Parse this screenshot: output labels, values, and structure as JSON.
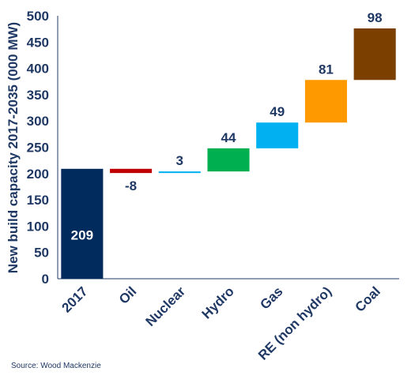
{
  "chart_data": {
    "type": "waterfall",
    "categories": [
      "2017",
      "Oil",
      "Nuclear",
      "Hydro",
      "Gas",
      "RE (non hydro)",
      "Coal"
    ],
    "values": [
      209,
      -8,
      3,
      44,
      49,
      81,
      98
    ],
    "labels": [
      "209",
      "-8",
      "3",
      "44",
      "49",
      "81",
      "98"
    ],
    "colors": [
      "#002b5c",
      "#c00000",
      "#00b0f0",
      "#00b050",
      "#00b0f0",
      "#ff9900",
      "#7b3f00"
    ],
    "ylabel": "New build capacity 2017-2035 (000 MW)",
    "ylim": [
      0,
      500
    ],
    "yticks": [
      0,
      50,
      100,
      150,
      200,
      250,
      300,
      350,
      400,
      450,
      500
    ],
    "grid": false,
    "legend": "none"
  },
  "source": "Source: Wood Mackenzie"
}
